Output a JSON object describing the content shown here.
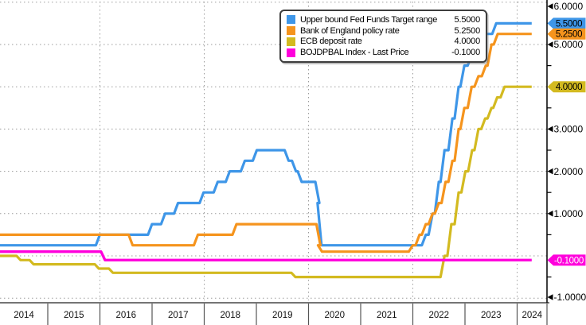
{
  "colors": {
    "background": "#ffffff",
    "grid": "#9b9b9b",
    "axis": "#000000",
    "band_line": "#222222",
    "band_separator": "#555555",
    "legend_border": "#3d3d3d",
    "tick_label": "#000000",
    "year_label": "#111111"
  },
  "legend": {
    "position": "top-center"
  },
  "chart_data": {
    "type": "line",
    "title": "",
    "y_axis": {
      "min": -1.0,
      "max": 6.0,
      "minor_tick_step": 0.5,
      "gridline_values": [
        -1,
        0,
        1,
        2,
        3,
        4,
        5,
        6
      ],
      "labels": [
        {
          "text": "6.0000",
          "value": 6
        },
        {
          "text": "5.0000",
          "value": 5
        },
        {
          "text": "3.0000",
          "value": 3
        },
        {
          "text": "2.0000",
          "value": 2
        },
        {
          "text": "1.0000",
          "value": 1
        },
        {
          "text": "-1.0000",
          "value": -1
        }
      ]
    },
    "x_axis": {
      "start_year": 2014,
      "end": 2024.28,
      "year_labels": [
        "2014",
        "2015",
        "2016",
        "2017",
        "2018",
        "2019",
        "2020",
        "2021",
        "2022",
        "2023",
        "2024"
      ],
      "gridline_years": [
        2016,
        2018,
        2020,
        2022,
        2024
      ]
    },
    "series": [
      {
        "name": "Upper bound Fed Funds Target range",
        "last_label": "5.5000",
        "color": "#3e96e8",
        "badge_text_color": "#000000",
        "points": [
          [
            2014.0,
            0.25
          ],
          [
            2015.96,
            0.5
          ],
          [
            2016.96,
            0.75
          ],
          [
            2017.21,
            1.0
          ],
          [
            2017.46,
            1.25
          ],
          [
            2017.95,
            1.5
          ],
          [
            2018.22,
            1.75
          ],
          [
            2018.45,
            2.0
          ],
          [
            2018.74,
            2.25
          ],
          [
            2018.97,
            2.5
          ],
          [
            2019.58,
            2.25
          ],
          [
            2019.72,
            2.0
          ],
          [
            2019.83,
            1.75
          ],
          [
            2020.17,
            1.25
          ],
          [
            2020.21,
            0.25
          ],
          [
            2022.21,
            0.5
          ],
          [
            2022.34,
            1.0
          ],
          [
            2022.46,
            1.75
          ],
          [
            2022.57,
            2.5
          ],
          [
            2022.72,
            3.25
          ],
          [
            2022.84,
            4.0
          ],
          [
            2022.95,
            4.5
          ],
          [
            2023.09,
            4.75
          ],
          [
            2023.22,
            5.0
          ],
          [
            2023.34,
            5.25
          ],
          [
            2023.56,
            5.5
          ]
        ]
      },
      {
        "name": "Bank of England policy rate",
        "last_label": "5.2500",
        "color": "#f5941d",
        "badge_text_color": "#000000",
        "points": [
          [
            2014.0,
            0.5
          ],
          [
            2016.59,
            0.25
          ],
          [
            2017.84,
            0.5
          ],
          [
            2018.58,
            0.75
          ],
          [
            2020.19,
            0.25
          ],
          [
            2020.22,
            0.1
          ],
          [
            2021.96,
            0.25
          ],
          [
            2022.09,
            0.5
          ],
          [
            2022.21,
            0.75
          ],
          [
            2022.34,
            1.0
          ],
          [
            2022.46,
            1.25
          ],
          [
            2022.59,
            1.75
          ],
          [
            2022.72,
            2.25
          ],
          [
            2022.84,
            3.0
          ],
          [
            2022.95,
            3.5
          ],
          [
            2023.09,
            4.0
          ],
          [
            2023.22,
            4.25
          ],
          [
            2023.36,
            4.5
          ],
          [
            2023.47,
            5.0
          ],
          [
            2023.59,
            5.25
          ]
        ]
      },
      {
        "name": "ECB deposit rate",
        "last_label": "4.0000",
        "color": "#d3ba20",
        "badge_text_color": "#000000",
        "points": [
          [
            2014.0,
            0.0
          ],
          [
            2014.44,
            -0.1
          ],
          [
            2014.69,
            -0.2
          ],
          [
            2015.94,
            -0.3
          ],
          [
            2016.21,
            -0.4
          ],
          [
            2019.71,
            -0.5
          ],
          [
            2022.57,
            0.0
          ],
          [
            2022.7,
            0.75
          ],
          [
            2022.84,
            1.5
          ],
          [
            2022.97,
            2.0
          ],
          [
            2023.1,
            2.5
          ],
          [
            2023.22,
            3.0
          ],
          [
            2023.35,
            3.25
          ],
          [
            2023.47,
            3.5
          ],
          [
            2023.58,
            3.75
          ],
          [
            2023.72,
            4.0
          ]
        ]
      },
      {
        "name": "BOJDPBAL Index - Last Price",
        "last_label": "-0.1000",
        "color": "#ff00dc",
        "badge_text_color": "#ffffff",
        "points": [
          [
            2014.0,
            0.1
          ],
          [
            2016.06,
            -0.1
          ]
        ]
      }
    ]
  }
}
